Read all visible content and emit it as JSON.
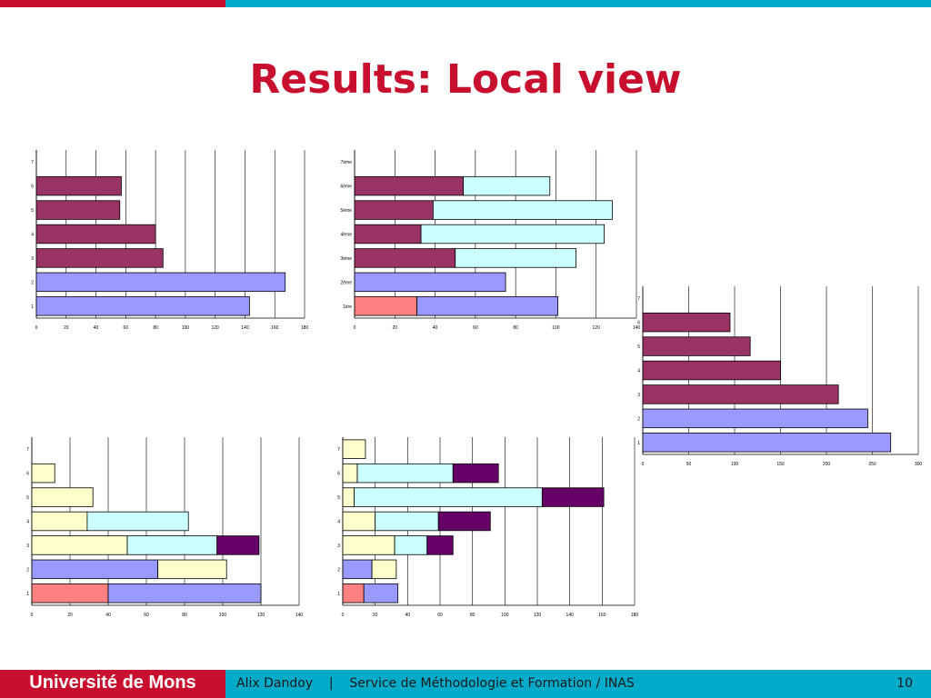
{
  "slide": {
    "title": "Results: Local view",
    "footer": {
      "institution": "Université de Mons",
      "author": "Alix Dandoy",
      "separator": "|",
      "department": "Service de Méthodologie et Formation / INAS",
      "page": "10"
    }
  },
  "colors": {
    "red_bar": "#ff8080",
    "blue_bar": "#9999ff",
    "maroon_bar": "#993366",
    "cyan_bar": "#ccffff",
    "yellow_bar": "#ffffcc",
    "purple_bar": "#660066",
    "brand_red": "#c8102e",
    "brand_cyan": "#00aac9"
  },
  "chart_data": [
    {
      "type": "bar",
      "orientation": "horizontal",
      "stacked": true,
      "categories": [
        "1",
        "2",
        "3",
        "4",
        "5",
        "6",
        "7"
      ],
      "xlim": [
        0,
        180
      ],
      "xticks": [
        "0",
        "20",
        "40",
        "60",
        "80",
        "100",
        "120",
        "140",
        "160",
        "180"
      ],
      "grid": true,
      "series": [
        {
          "color": "#9999ff",
          "values": [
            143,
            167,
            0,
            0,
            0,
            0,
            0
          ]
        },
        {
          "color": "#993366",
          "values": [
            0,
            0,
            85,
            80,
            56,
            57,
            0
          ]
        }
      ]
    },
    {
      "type": "bar",
      "orientation": "horizontal",
      "stacked": true,
      "categories": [
        "1ère",
        "2ème",
        "3ème",
        "4ème",
        "5ème",
        "6ème",
        "7ème"
      ],
      "xlim": [
        0,
        140
      ],
      "xticks": [
        "0",
        "20",
        "40",
        "60",
        "80",
        "100",
        "120",
        "140"
      ],
      "grid": true,
      "series": [
        {
          "color": "#ff8080",
          "values": [
            31,
            0,
            0,
            0,
            0,
            0,
            0
          ]
        },
        {
          "color": "#9999ff",
          "values": [
            70,
            75,
            0,
            0,
            0,
            0,
            0
          ]
        },
        {
          "color": "#993366",
          "values": [
            0,
            0,
            50,
            33,
            39,
            54,
            0
          ]
        },
        {
          "color": "#ccffff",
          "values": [
            0,
            0,
            60,
            91,
            89,
            43,
            0
          ]
        }
      ]
    },
    {
      "type": "bar",
      "orientation": "horizontal",
      "stacked": true,
      "categories": [
        "1",
        "2",
        "3",
        "4",
        "5",
        "6",
        "7"
      ],
      "xlim": [
        0,
        300
      ],
      "xticks": [
        "0",
        "50",
        "100",
        "150",
        "200",
        "250",
        "300"
      ],
      "grid": true,
      "series": [
        {
          "color": "#9999ff",
          "values": [
            270,
            245,
            0,
            0,
            0,
            0,
            0
          ]
        },
        {
          "color": "#993366",
          "values": [
            0,
            0,
            213,
            150,
            117,
            95,
            0
          ]
        }
      ]
    },
    {
      "type": "bar",
      "orientation": "horizontal",
      "stacked": true,
      "categories": [
        "1",
        "2",
        "3",
        "4",
        "5",
        "6",
        "7"
      ],
      "xlim": [
        0,
        140
      ],
      "xticks": [
        "0",
        "20",
        "40",
        "60",
        "80",
        "100",
        "120",
        "140"
      ],
      "grid": true,
      "series": [
        {
          "color": "#ff8080",
          "values": [
            40,
            0,
            0,
            0,
            0,
            0,
            0
          ]
        },
        {
          "color": "#9999ff",
          "values": [
            80,
            66,
            0,
            0,
            0,
            0,
            0
          ]
        },
        {
          "color": "#ffffcc",
          "values": [
            0,
            36,
            50,
            29,
            32,
            12,
            0
          ]
        },
        {
          "color": "#ccffff",
          "values": [
            0,
            0,
            47,
            53,
            0,
            0,
            0
          ]
        },
        {
          "color": "#660066",
          "values": [
            0,
            0,
            22,
            0,
            0,
            0,
            0
          ]
        }
      ]
    },
    {
      "type": "bar",
      "orientation": "horizontal",
      "stacked": true,
      "categories": [
        "1",
        "2",
        "3",
        "4",
        "5",
        "6",
        "7"
      ],
      "xlim": [
        0,
        180
      ],
      "xticks": [
        "0",
        "20",
        "40",
        "60",
        "80",
        "100",
        "120",
        "140",
        "160",
        "180"
      ],
      "grid": true,
      "series": [
        {
          "color": "#ff8080",
          "values": [
            13,
            0,
            0,
            0,
            0,
            0,
            0
          ]
        },
        {
          "color": "#9999ff",
          "values": [
            21,
            18,
            0,
            0,
            0,
            0,
            0
          ]
        },
        {
          "color": "#ffffcc",
          "values": [
            0,
            15,
            32,
            20,
            7,
            9,
            14
          ]
        },
        {
          "color": "#ccffff",
          "values": [
            0,
            0,
            20,
            39,
            116,
            59,
            0
          ]
        },
        {
          "color": "#660066",
          "values": [
            0,
            0,
            16,
            32,
            38,
            28,
            0
          ]
        }
      ]
    }
  ]
}
